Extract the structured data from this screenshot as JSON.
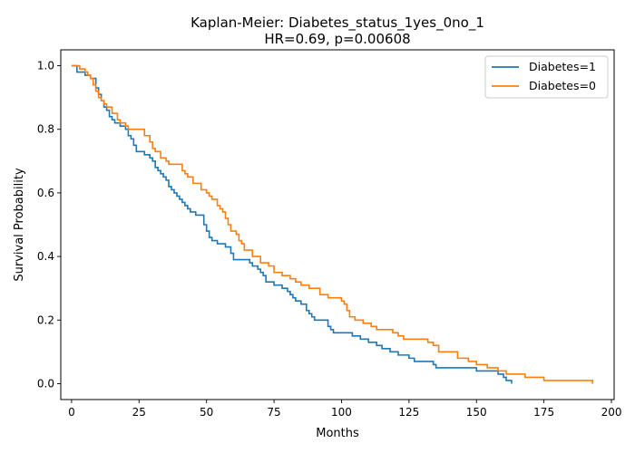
{
  "chart_data": {
    "type": "line",
    "title": "Kaplan-Meier: Diabetes_status_1yes_0no_1",
    "subtitle": "HR=0.69, p=0.00608",
    "xlabel": "Months",
    "ylabel": "Survival Probability",
    "xlim": [
      -4,
      201
    ],
    "ylim": [
      -0.05,
      1.05
    ],
    "xticks": [
      0,
      25,
      50,
      75,
      100,
      125,
      150,
      175,
      200
    ],
    "yticks": [
      0.0,
      0.2,
      0.4,
      0.6,
      0.8,
      1.0
    ],
    "ytick_labels": [
      "0.0",
      "0.2",
      "0.4",
      "0.6",
      "0.8",
      "1.0"
    ],
    "grid": false,
    "legend_position": "top-right",
    "series": [
      {
        "name": "Diabetes=1",
        "color": "#1f77b4",
        "step": "post",
        "x": [
          0,
          2,
          5,
          7,
          9,
          10,
          11,
          12,
          13,
          14,
          15,
          16,
          18,
          20,
          21,
          22,
          23,
          24,
          27,
          29,
          30,
          31,
          32,
          33,
          34,
          35,
          36,
          37,
          38,
          39,
          40,
          41,
          42,
          43,
          44,
          46,
          49,
          50,
          51,
          52,
          54,
          57,
          59,
          60,
          62,
          66,
          67,
          69,
          70,
          71,
          72,
          75,
          78,
          80,
          81,
          82,
          83,
          85,
          87,
          88,
          89,
          90,
          95,
          96,
          97,
          104,
          107,
          110,
          113,
          115,
          118,
          121,
          125,
          127,
          134,
          135,
          144,
          150,
          156,
          158,
          160,
          161,
          162,
          163
        ],
        "y": [
          1.0,
          0.98,
          0.97,
          0.96,
          0.93,
          0.91,
          0.89,
          0.87,
          0.86,
          0.84,
          0.83,
          0.82,
          0.81,
          0.8,
          0.78,
          0.77,
          0.75,
          0.73,
          0.72,
          0.71,
          0.7,
          0.68,
          0.67,
          0.66,
          0.65,
          0.64,
          0.62,
          0.61,
          0.6,
          0.59,
          0.58,
          0.57,
          0.56,
          0.55,
          0.54,
          0.53,
          0.5,
          0.48,
          0.46,
          0.45,
          0.44,
          0.43,
          0.41,
          0.39,
          0.39,
          0.38,
          0.37,
          0.36,
          0.35,
          0.34,
          0.32,
          0.31,
          0.3,
          0.29,
          0.28,
          0.27,
          0.26,
          0.25,
          0.23,
          0.22,
          0.21,
          0.2,
          0.18,
          0.17,
          0.16,
          0.15,
          0.14,
          0.13,
          0.12,
          0.11,
          0.1,
          0.09,
          0.08,
          0.07,
          0.06,
          0.05,
          0.05,
          0.04,
          0.04,
          0.03,
          0.02,
          0.01,
          0.01,
          0.0
        ]
      },
      {
        "name": "Diabetes=0",
        "color": "#ff7f0e",
        "step": "post",
        "x": [
          0,
          3,
          5,
          6,
          7,
          8,
          9,
          10,
          11,
          12,
          13,
          15,
          17,
          18,
          20,
          21,
          22,
          27,
          29,
          30,
          31,
          33,
          35,
          36,
          41,
          42,
          43,
          45,
          48,
          50,
          51,
          52,
          54,
          55,
          56,
          57,
          58,
          59,
          61,
          62,
          63,
          64,
          67,
          70,
          73,
          75,
          78,
          81,
          83,
          85,
          88,
          92,
          95,
          100,
          101,
          102,
          103,
          105,
          108,
          111,
          113,
          119,
          121,
          123,
          132,
          134,
          136,
          143,
          147,
          150,
          154,
          158,
          161,
          168,
          175,
          187,
          192,
          193
        ],
        "y": [
          1.0,
          0.99,
          0.98,
          0.97,
          0.96,
          0.94,
          0.92,
          0.9,
          0.89,
          0.88,
          0.87,
          0.85,
          0.83,
          0.82,
          0.81,
          0.8,
          0.8,
          0.78,
          0.76,
          0.74,
          0.73,
          0.71,
          0.7,
          0.69,
          0.67,
          0.66,
          0.65,
          0.63,
          0.61,
          0.6,
          0.59,
          0.58,
          0.56,
          0.55,
          0.54,
          0.52,
          0.5,
          0.48,
          0.47,
          0.45,
          0.44,
          0.42,
          0.4,
          0.38,
          0.37,
          0.35,
          0.34,
          0.33,
          0.32,
          0.31,
          0.3,
          0.28,
          0.27,
          0.26,
          0.25,
          0.23,
          0.21,
          0.2,
          0.19,
          0.18,
          0.17,
          0.16,
          0.15,
          0.14,
          0.13,
          0.12,
          0.1,
          0.08,
          0.07,
          0.06,
          0.05,
          0.04,
          0.03,
          0.02,
          0.01,
          0.01,
          0.01,
          0.0
        ]
      }
    ]
  }
}
